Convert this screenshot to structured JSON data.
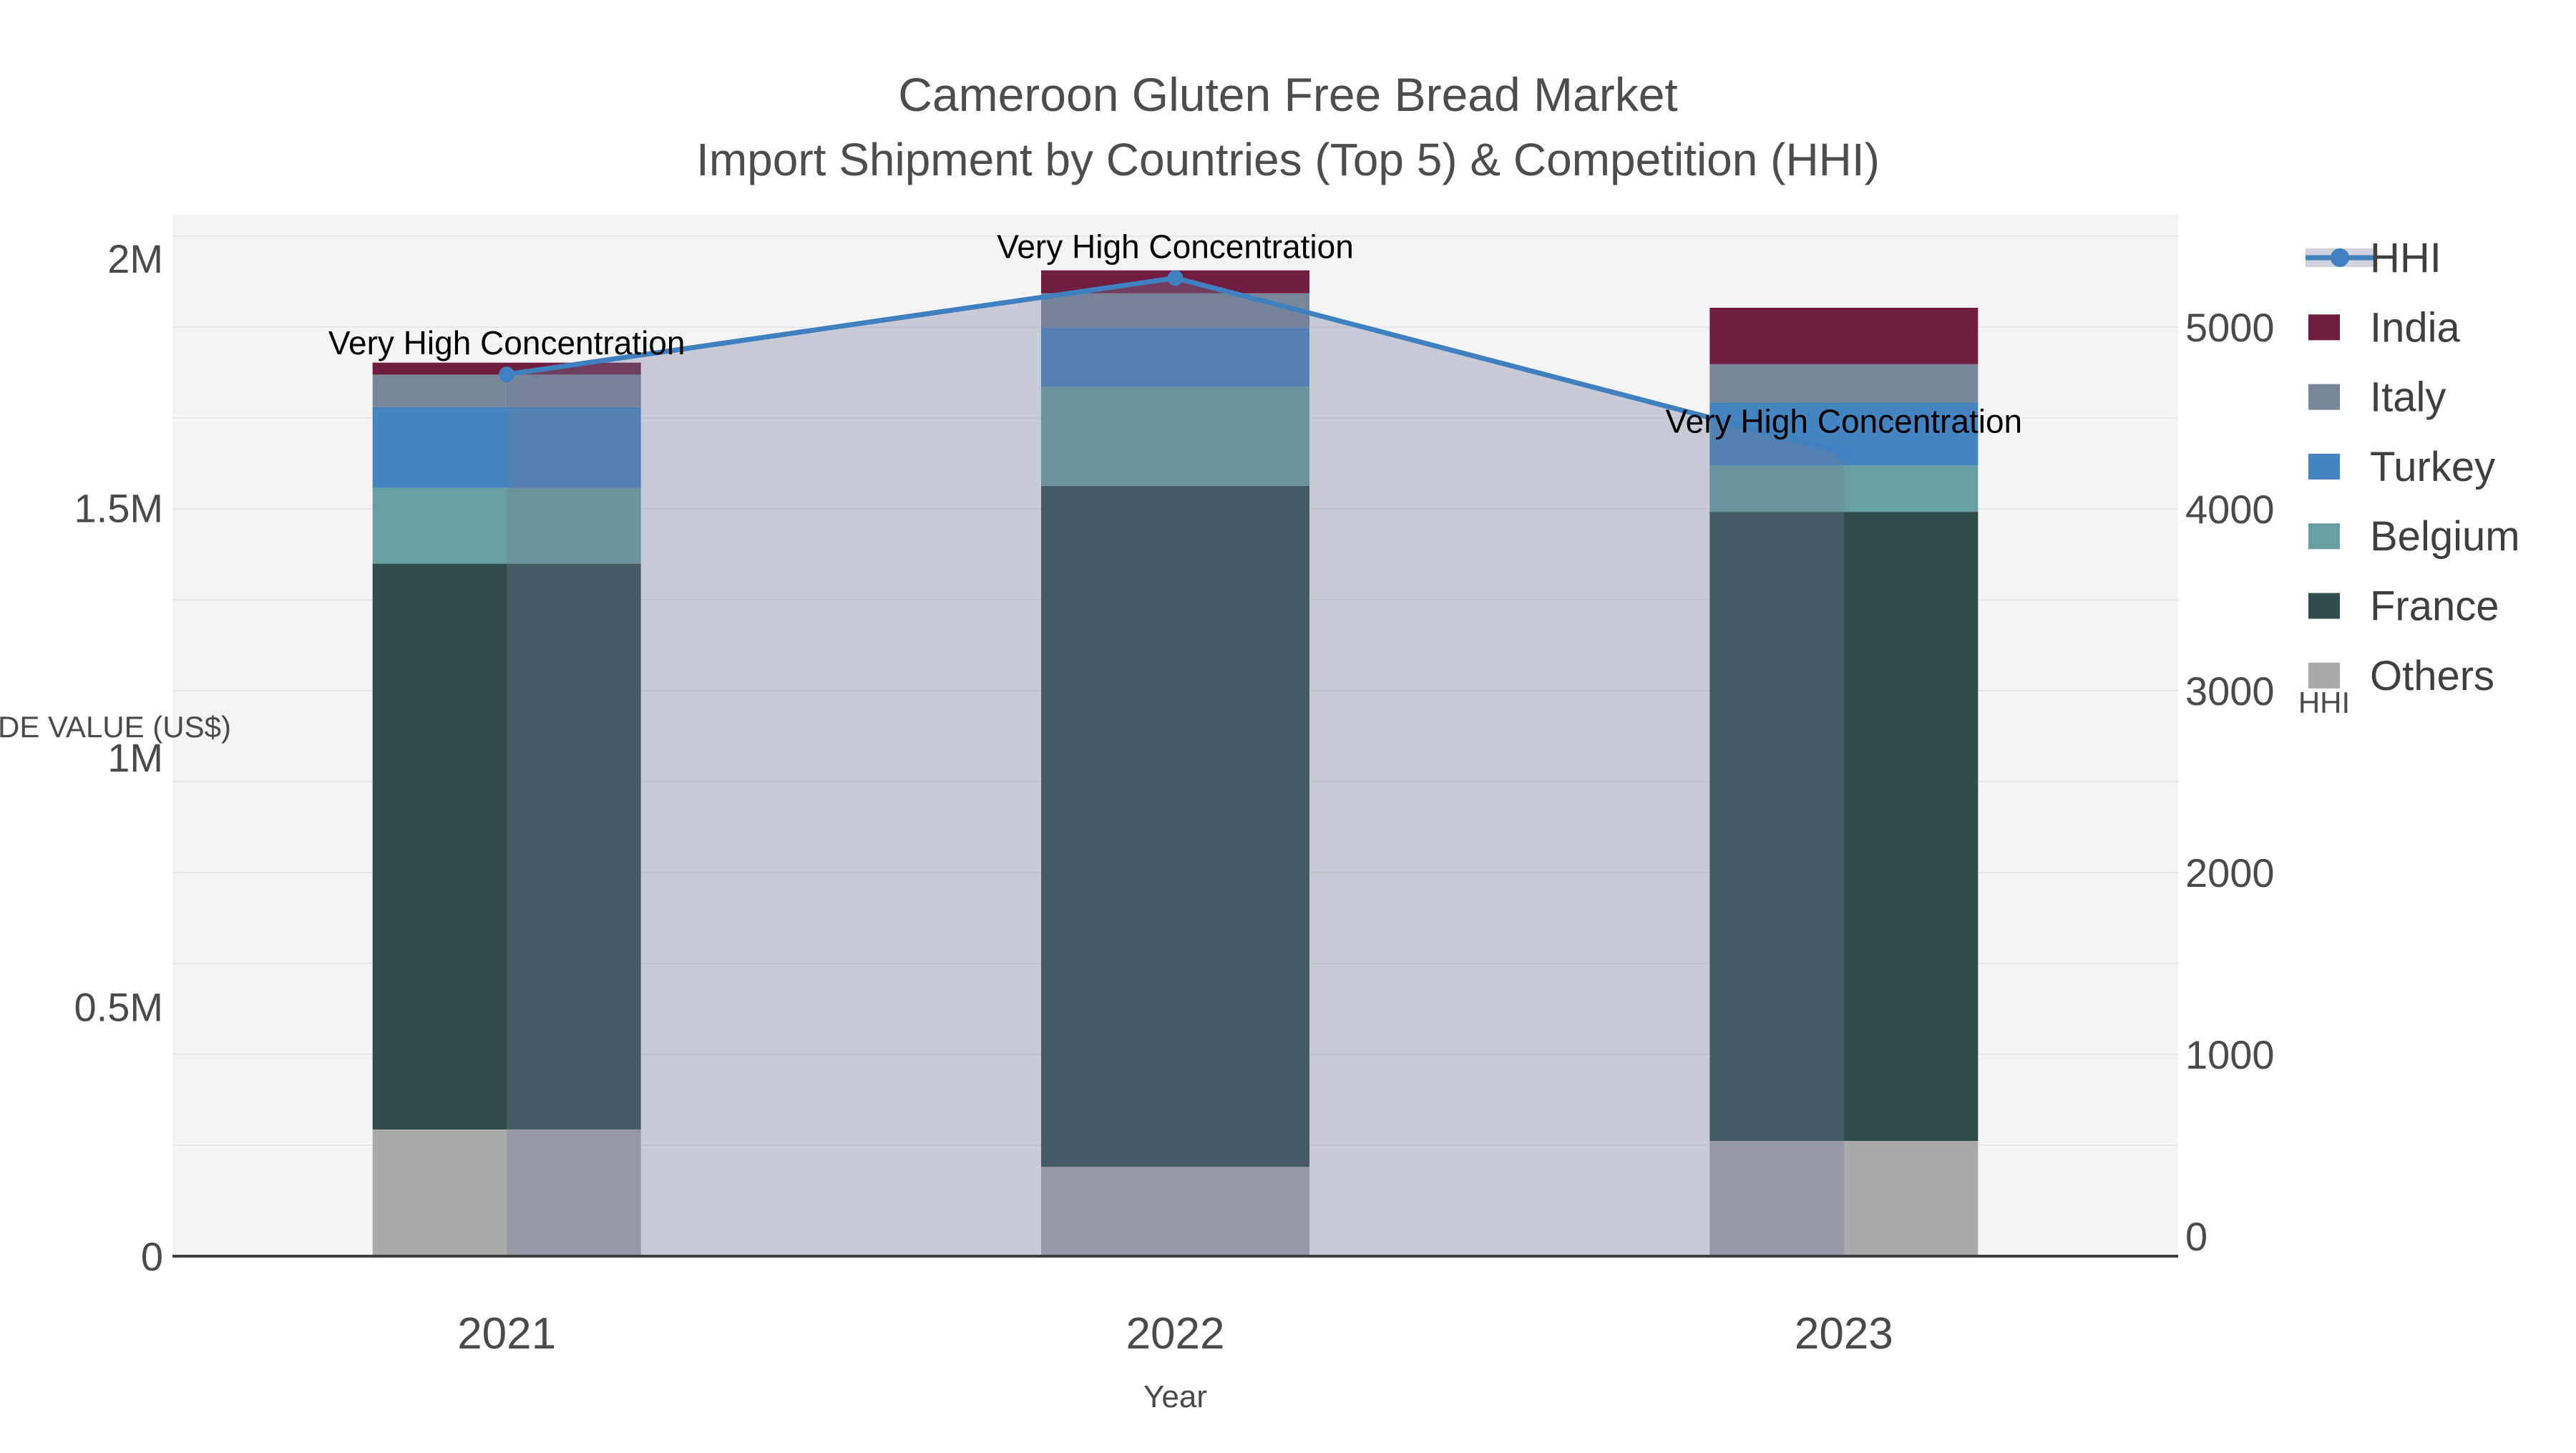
{
  "title": {
    "line1": "Cameroon Gluten Free Bread Market",
    "line2": "Import Shipment by Countries (Top 5) & Competition (HHI)"
  },
  "axes": {
    "x": {
      "title": "Year",
      "categories": [
        "2021",
        "2022",
        "2023"
      ]
    },
    "y_left": {
      "title": "TRADE VALUE (US$)",
      "tick_labels": [
        "0",
        "0.5M",
        "1M",
        "1.5M",
        "2M"
      ],
      "tick_values": [
        0,
        500000,
        1000000,
        1500000,
        2000000
      ],
      "range": [
        0,
        2000000
      ]
    },
    "y_right": {
      "title": "HHI",
      "tick_labels": [
        "0",
        "1000",
        "2000",
        "3000",
        "4000",
        "5000"
      ],
      "tick_values": [
        0,
        1000,
        2000,
        3000,
        4000,
        5000
      ],
      "range": [
        0,
        5500
      ]
    }
  },
  "legend": {
    "items": [
      {
        "label": "HHI",
        "symbol": "line",
        "color": "#3f80c0"
      },
      {
        "label": "India",
        "symbol": "swatch",
        "color": "#701d3f"
      },
      {
        "label": "Italy",
        "symbol": "swatch",
        "color": "#78879a"
      },
      {
        "label": "Turkey",
        "symbol": "swatch",
        "color": "#4384c1"
      },
      {
        "label": "Belgium",
        "symbol": "swatch",
        "color": "#689fa1"
      },
      {
        "label": "France",
        "symbol": "swatch",
        "color": "#2e4d4b"
      },
      {
        "label": "Others",
        "symbol": "swatch",
        "color": "#a9a9a7"
      }
    ]
  },
  "chart_data": {
    "type": "bar",
    "subtype": "stacked-bar-with-line",
    "title": "Cameroon Gluten Free Bread Market — Import Shipment by Countries (Top 5) & Competition (HHI)",
    "xlabel": "Year",
    "ylabel": "TRADE VALUE (US$)",
    "ylabel_right": "HHI",
    "categories": [
      "2021",
      "2022",
      "2023"
    ],
    "ylim_left": [
      0,
      2000000
    ],
    "ylim_right": [
      0,
      5500
    ],
    "grid": "horizontal",
    "legend_position": "top-right",
    "series": [
      {
        "name": "Others",
        "color": "#a9a9a7",
        "values": [
          254000,
          179000,
          231000
        ]
      },
      {
        "name": "France",
        "color": "#2e4d4b",
        "values": [
          1134000,
          1365000,
          1261000
        ]
      },
      {
        "name": "Belgium",
        "color": "#689fa1",
        "values": [
          152000,
          199000,
          93000
        ]
      },
      {
        "name": "Turkey",
        "color": "#4384c1",
        "values": [
          162000,
          118000,
          126000
        ]
      },
      {
        "name": "Italy",
        "color": "#78879a",
        "values": [
          65000,
          69000,
          77000
        ]
      },
      {
        "name": "India",
        "color": "#701d3f",
        "values": [
          24000,
          46000,
          113000
        ]
      }
    ],
    "stack_totals": [
      1791000,
      1976000,
      1901000
    ],
    "line_series": {
      "name": "HHI",
      "axis": "right",
      "color": "#3f80c0",
      "fill_color": "rgba(113,124,154,0.34)",
      "values": [
        4740,
        5270,
        4310
      ]
    },
    "annotations": [
      {
        "text": "Very High Concentration",
        "category": "2021"
      },
      {
        "text": "Very High Concentration",
        "category": "2022"
      },
      {
        "text": "Very High Concentration",
        "category": "2023"
      }
    ]
  },
  "style": {
    "plot_bg": "#f4f4f5",
    "paper_bg": "#ffffff",
    "grid_color": "#e7e8ec",
    "axis_line_color": "#3f3f3f",
    "tick_color": "#4a4a4a",
    "title_color": "#4d4d4d",
    "annotation_color": "#000000"
  }
}
